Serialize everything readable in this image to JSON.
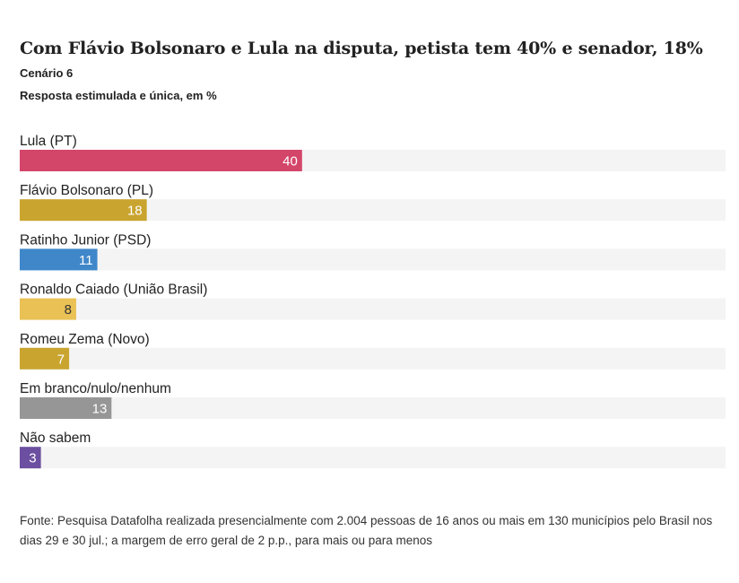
{
  "header": {
    "title": "Com Flávio Bolsonaro e Lula na disputa, petista tem 40% e senador, 18%",
    "subtitle": "Cenário 6",
    "subtitle2": "Resposta estimulada e única, em %"
  },
  "chart_data": {
    "type": "bar",
    "orientation": "horizontal",
    "categories": [
      "Lula (PT)",
      "Flávio Bolsonaro (PL)",
      "Ratinho Junior (PSD)",
      "Ronaldo Caiado (União Brasil)",
      "Romeu Zema (Novo)",
      "Em branco/nulo/nenhum",
      "Não sabem"
    ],
    "values": [
      40,
      18,
      11,
      8,
      7,
      13,
      3
    ],
    "colors": [
      "#d4456a",
      "#c9a42f",
      "#3f87c9",
      "#e9c155",
      "#c9a42f",
      "#969696",
      "#6c4fa0"
    ],
    "label_colors": [
      "#ffffff",
      "#ffffff",
      "#ffffff",
      "#333333",
      "#ffffff",
      "#ffffff",
      "#ffffff"
    ],
    "track_color": "#f4f4f4",
    "xlim": [
      0,
      100
    ],
    "grid": false
  },
  "footer": {
    "source": "Fonte: Pesquisa Datafolha realizada presencialmente com 2.004 pessoas de 16 anos ou mais em 130 municípios pelo Brasil nos dias 29 e 30 jul.; a margem de erro geral de 2 p.p., para mais ou para menos"
  }
}
